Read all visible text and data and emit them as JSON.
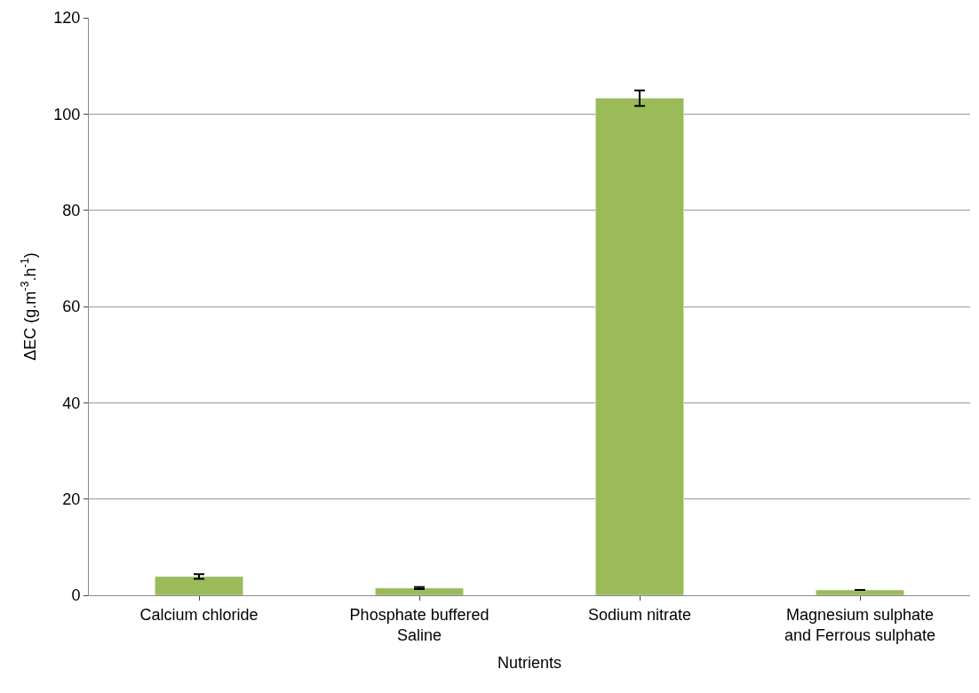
{
  "chart_data": {
    "type": "bar",
    "xlabel": "Nutrients",
    "ylabel": "ΔEC (g.m$^{-3}$.h$^{-1}$)",
    "categories": [
      "Calcium chloride",
      "Phosphate buffered\nSaline",
      "Sodium nitrate",
      "Magnesium sulphate\nand Ferrous sulphate"
    ],
    "values": [
      3.9,
      1.5,
      103.3,
      1.1
    ],
    "errors": [
      0.5,
      0.2,
      1.6,
      null
    ],
    "color": "#9bbb59",
    "ylim": [
      0,
      120
    ],
    "yticks": [
      0,
      20,
      40,
      60,
      80,
      100,
      120
    ],
    "grid": "y"
  }
}
